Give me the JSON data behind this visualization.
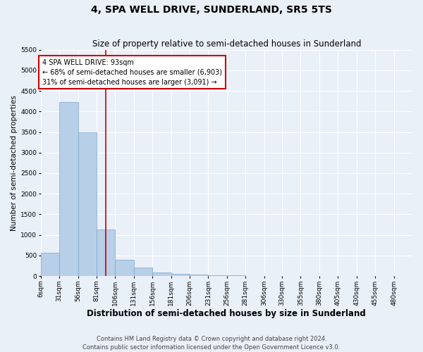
{
  "title": "4, SPA WELL DRIVE, SUNDERLAND, SR5 5TS",
  "subtitle": "Size of property relative to semi-detached houses in Sunderland",
  "xlabel": "Distribution of semi-detached houses by size in Sunderland",
  "ylabel": "Number of semi-detached properties",
  "footer_line1": "Contains HM Land Registry data © Crown copyright and database right 2024.",
  "footer_line2": "Contains public sector information licensed under the Open Government Licence v3.0.",
  "property_size": 93,
  "annotation_line1": "4 SPA WELL DRIVE: 93sqm",
  "annotation_line2": "← 68% of semi-detached houses are smaller (6,903)",
  "annotation_line3": "31% of semi-detached houses are larger (3,091) →",
  "bar_color": "#b8cfe8",
  "bar_edge_color": "#7aa8d0",
  "vline_color": "#cc0000",
  "annotation_box_edge": "#cc0000",
  "annotation_box_face": "#ffffff",
  "bins": [
    6,
    31,
    56,
    81,
    106,
    131,
    156,
    181,
    206,
    231,
    256,
    281,
    306,
    330,
    355,
    380,
    405,
    430,
    455,
    480,
    505
  ],
  "counts": [
    570,
    4220,
    3500,
    1130,
    390,
    200,
    90,
    60,
    35,
    15,
    10,
    0,
    0,
    0,
    0,
    0,
    0,
    0,
    0,
    0
  ],
  "ylim": [
    0,
    5500
  ],
  "yticks": [
    0,
    500,
    1000,
    1500,
    2000,
    2500,
    3000,
    3500,
    4000,
    4500,
    5000,
    5500
  ],
  "background_color": "#eaf0f8",
  "grid_color": "#ffffff",
  "title_fontsize": 10,
  "subtitle_fontsize": 8.5,
  "axis_label_fontsize": 7.5,
  "tick_fontsize": 6.5,
  "annotation_fontsize": 7,
  "footer_fontsize": 6
}
